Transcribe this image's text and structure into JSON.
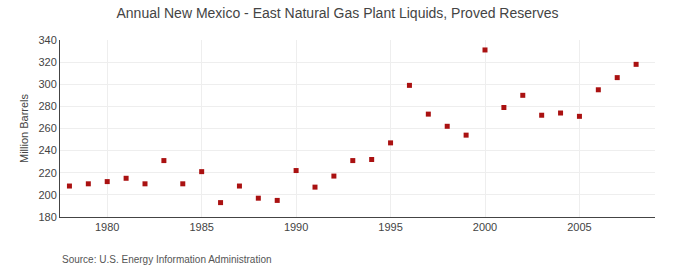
{
  "chart_data": {
    "type": "scatter",
    "title": "Annual New Mexico - East Natural Gas Plant Liquids, Proved Reserves",
    "y_label": "Million Barrels",
    "annotations": [
      "Source: U.S. Energy Information Administration"
    ],
    "x": [
      1978,
      1979,
      1980,
      1981,
      1982,
      1983,
      1984,
      1985,
      1986,
      1987,
      1988,
      1989,
      1990,
      1991,
      1992,
      1993,
      1994,
      1995,
      1996,
      1997,
      1998,
      1999,
      2000,
      2001,
      2002,
      2003,
      2004,
      2005,
      2006,
      2007,
      2008
    ],
    "values": [
      208,
      210,
      212,
      215,
      210,
      231,
      210,
      221,
      193,
      208,
      197,
      195,
      222,
      207,
      217,
      231,
      232,
      247,
      299,
      273,
      262,
      254,
      331,
      279,
      290,
      272,
      274,
      271,
      295,
      306,
      318
    ],
    "color": "#aa1111",
    "marker": "square",
    "xlim": [
      1977.5,
      2009
    ],
    "ylim": [
      180,
      340
    ],
    "xticks": [
      1980,
      1985,
      1990,
      1995,
      2000,
      2005
    ],
    "yticks": [
      180,
      200,
      220,
      240,
      260,
      280,
      300,
      320,
      340
    ],
    "grid": true
  }
}
